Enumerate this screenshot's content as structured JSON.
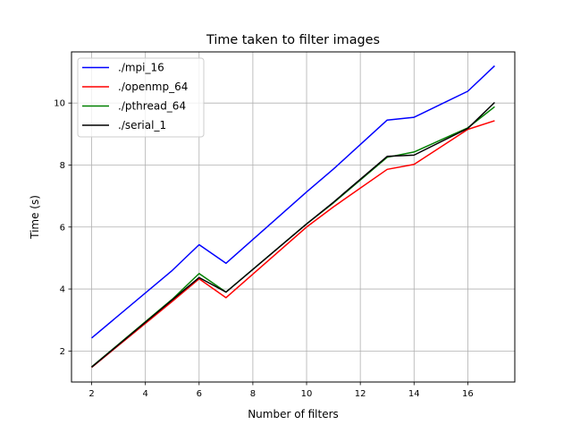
{
  "chart_data": {
    "type": "line",
    "title": "Time taken to filter images",
    "xlabel": "Number of filters",
    "ylabel": "Time (s)",
    "xlim": [
      1.25,
      17.75
    ],
    "ylim": [
      1.0,
      11.65
    ],
    "xticks": [
      2,
      4,
      6,
      8,
      10,
      12,
      14,
      16
    ],
    "yticks": [
      2,
      4,
      6,
      8,
      10
    ],
    "grid": true,
    "legend_position": "upper-left",
    "series": [
      {
        "name": "./mpi_16",
        "color": "#0000ff",
        "x": [
          2,
          5,
          6,
          7,
          10,
          11,
          13,
          14,
          16,
          17
        ],
        "y": [
          2.42,
          4.6,
          5.43,
          4.83,
          7.13,
          7.87,
          9.45,
          9.54,
          10.38,
          11.2
        ]
      },
      {
        "name": "./openmp_64",
        "color": "#ff0000",
        "x": [
          2,
          5,
          6,
          7,
          10,
          11,
          13,
          14,
          16,
          17
        ],
        "y": [
          1.47,
          3.6,
          4.33,
          3.72,
          6.0,
          6.65,
          7.86,
          8.02,
          9.15,
          9.43
        ]
      },
      {
        "name": "./pthread_64",
        "color": "#008000",
        "x": [
          2,
          5,
          6,
          7,
          10,
          11,
          13,
          14,
          16,
          17
        ],
        "y": [
          1.49,
          3.67,
          4.5,
          3.9,
          6.1,
          6.78,
          8.25,
          8.42,
          9.2,
          9.88
        ]
      },
      {
        "name": "./serial_1",
        "color": "#000000",
        "x": [
          2,
          5,
          6,
          7,
          10,
          11,
          13,
          14,
          16,
          17
        ],
        "y": [
          1.48,
          3.65,
          4.37,
          3.9,
          6.1,
          6.8,
          8.28,
          8.32,
          9.18,
          10.02
        ]
      }
    ]
  }
}
